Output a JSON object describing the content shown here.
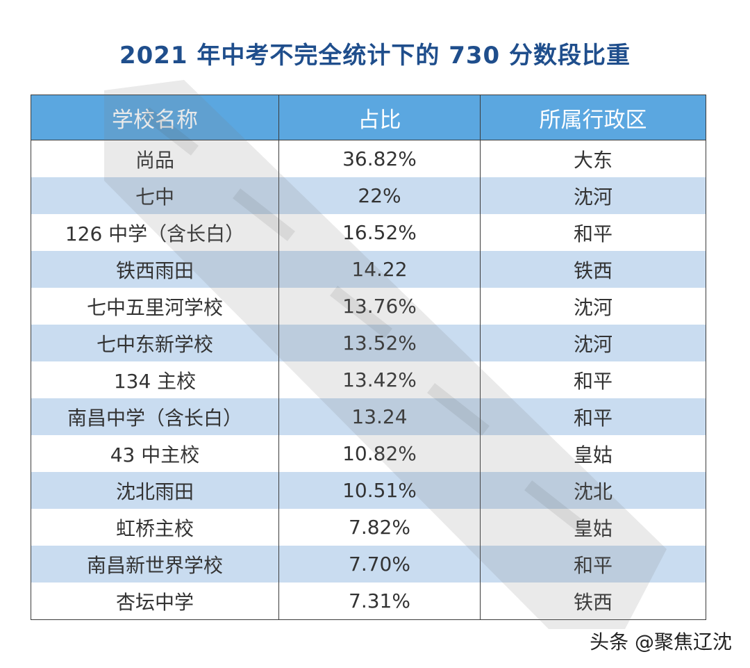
{
  "title": "2021 年中考不完全统计下的 730 分数段比重",
  "table": {
    "headers": [
      "学校名称",
      "占比",
      "所属行政区"
    ],
    "rows": [
      [
        "尚品",
        "36.82%",
        "大东"
      ],
      [
        "七中",
        "22%",
        "沈河"
      ],
      [
        "126 中学（含长白）",
        "16.52%",
        "和平"
      ],
      [
        "铁西雨田",
        "14.22",
        "铁西"
      ],
      [
        "七中五里河学校",
        "13.76%",
        "沈河"
      ],
      [
        "七中东新学校",
        "13.52%",
        "沈河"
      ],
      [
        "134 主校",
        "13.42%",
        "和平"
      ],
      [
        "南昌中学（含长白）",
        "13.24",
        "和平"
      ],
      [
        "43 中主校",
        "10.82%",
        "皇姑"
      ],
      [
        "沈北雨田",
        "10.51%",
        "沈北"
      ],
      [
        "虹桥主校",
        "7.82%",
        "皇姑"
      ],
      [
        "南昌新世界学校",
        "7.70%",
        "和平"
      ],
      [
        "杏坛中学",
        "7.31%",
        "铁西"
      ]
    ]
  },
  "source_label": "头条 @聚焦辽沈",
  "colors": {
    "title": "#1f4e8c",
    "header_bg": "#5ba7e0",
    "stripe_bg": "#c9dcf0"
  }
}
